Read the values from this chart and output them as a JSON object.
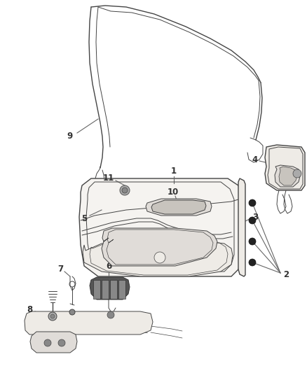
{
  "background_color": "#ffffff",
  "line_color": "#444444",
  "label_color": "#333333",
  "fill_panel": "#f5f3f0",
  "fill_light": "#eeebe6",
  "fill_medium": "#e0dcd8",
  "fill_dark": "#c8c4be"
}
